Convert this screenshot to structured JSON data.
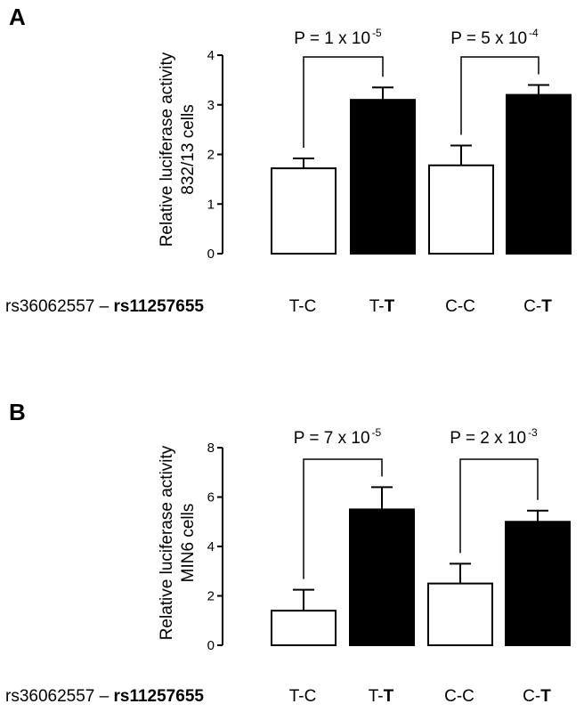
{
  "chart_data": [
    {
      "type": "bar",
      "panel_label": "A",
      "ylabel_line1": "Relative luciferase activity",
      "ylabel_line2": "832/13 cells",
      "ylim": [
        0,
        4
      ],
      "yticks": [
        "0",
        "1",
        "2",
        "3",
        "4"
      ],
      "snp_label_regular": "rs36062557 – ",
      "snp_label_bold": "rs11257655",
      "categories": [
        {
          "pre": "T-C",
          "bold": ""
        },
        {
          "pre": "T-",
          "bold": "T"
        },
        {
          "pre": "C-C",
          "bold": ""
        },
        {
          "pre": "C-",
          "bold": "T"
        }
      ],
      "values": [
        1.72,
        3.1,
        1.78,
        3.2
      ],
      "errors": [
        0.2,
        0.25,
        0.4,
        0.2
      ],
      "fill": [
        "white",
        "black",
        "white",
        "black"
      ],
      "comparisons": [
        {
          "from": 0,
          "to": 1,
          "base": "P = 1 x  10",
          "exp": "-5"
        },
        {
          "from": 2,
          "to": 3,
          "base": "P = 5 x  10",
          "exp": "-4"
        }
      ]
    },
    {
      "type": "bar",
      "panel_label": "B",
      "ylabel_line1": "Relative luciferase activity",
      "ylabel_line2": "MIN6 cells",
      "ylim": [
        0,
        8
      ],
      "yticks": [
        "0",
        "2",
        "4",
        "6",
        "8"
      ],
      "snp_label_regular": "rs36062557 – ",
      "snp_label_bold": "rs11257655",
      "categories": [
        {
          "pre": "T-C",
          "bold": ""
        },
        {
          "pre": "T-",
          "bold": "T"
        },
        {
          "pre": "C-C",
          "bold": ""
        },
        {
          "pre": "C-",
          "bold": "T"
        }
      ],
      "values": [
        1.4,
        5.5,
        2.5,
        5.0
      ],
      "errors": [
        0.85,
        0.9,
        0.8,
        0.45
      ],
      "fill": [
        "white",
        "black",
        "white",
        "black"
      ],
      "comparisons": [
        {
          "from": 0,
          "to": 1,
          "base": "P = 7 x  10",
          "exp": "-5"
        },
        {
          "from": 2,
          "to": 3,
          "base": "P = 2 x  10",
          "exp": "-3"
        }
      ]
    }
  ]
}
